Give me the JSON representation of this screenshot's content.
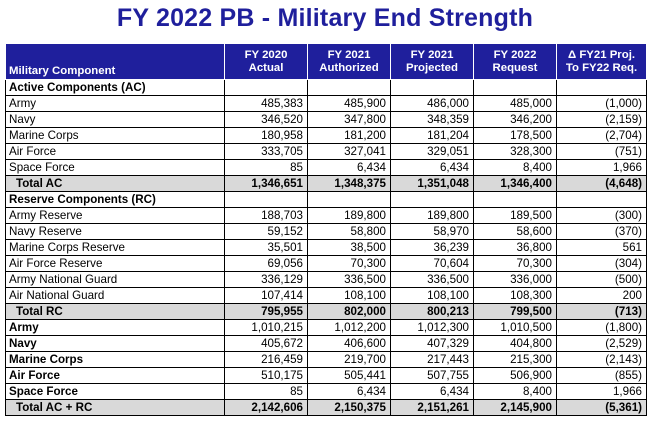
{
  "title": "FY 2022 PB - Military End Strength",
  "header": {
    "component": "Military Component",
    "cols": [
      {
        "l1": "FY 2020",
        "l2": "Actual"
      },
      {
        "l1": "FY 2021",
        "l2": "Authorized"
      },
      {
        "l1": "FY 2021",
        "l2": "Projected"
      },
      {
        "l1": "FY 2022",
        "l2": "Request"
      },
      {
        "l1": "Δ FY21 Proj.",
        "l2": "To FY22 Req."
      }
    ]
  },
  "sections": {
    "ac": "Active Components (AC)",
    "rc": "Reserve Components (RC)"
  },
  "ac_rows": [
    {
      "label": "Army",
      "v": [
        "485,383",
        "485,900",
        "486,000",
        "485,000",
        "(1,000)"
      ]
    },
    {
      "label": "Navy",
      "v": [
        "346,520",
        "347,800",
        "348,359",
        "346,200",
        "(2,159)"
      ]
    },
    {
      "label": "Marine Corps",
      "v": [
        "180,958",
        "181,200",
        "181,204",
        "178,500",
        "(2,704)"
      ]
    },
    {
      "label": "Air Force",
      "v": [
        "333,705",
        "327,041",
        "329,051",
        "328,300",
        "(751)"
      ]
    },
    {
      "label": "Space Force",
      "v": [
        "85",
        "6,434",
        "6,434",
        "8,400",
        "1,966"
      ]
    }
  ],
  "ac_total": {
    "label": "Total AC",
    "v": [
      "1,346,651",
      "1,348,375",
      "1,351,048",
      "1,346,400",
      "(4,648)"
    ]
  },
  "rc_rows": [
    {
      "label": "Army Reserve",
      "v": [
        "188,703",
        "189,800",
        "189,800",
        "189,500",
        "(300)"
      ]
    },
    {
      "label": "Navy Reserve",
      "v": [
        "59,152",
        "58,800",
        "58,970",
        "58,600",
        "(370)"
      ]
    },
    {
      "label": "Marine Corps Reserve",
      "v": [
        "35,501",
        "38,500",
        "36,239",
        "36,800",
        "561"
      ]
    },
    {
      "label": "Air Force Reserve",
      "v": [
        "69,056",
        "70,300",
        "70,604",
        "70,300",
        "(304)"
      ]
    },
    {
      "label": "Army National Guard",
      "v": [
        "336,129",
        "336,500",
        "336,500",
        "336,000",
        "(500)"
      ]
    },
    {
      "label": "Air National Guard",
      "v": [
        "107,414",
        "108,100",
        "108,100",
        "108,300",
        "200"
      ]
    }
  ],
  "rc_total": {
    "label": "Total RC",
    "v": [
      "795,955",
      "802,000",
      "800,213",
      "799,500",
      "(713)"
    ]
  },
  "combined_rows": [
    {
      "label": "Army",
      "v": [
        "1,010,215",
        "1,012,200",
        "1,012,300",
        "1,010,500",
        "(1,800)"
      ]
    },
    {
      "label": "Navy",
      "v": [
        "405,672",
        "406,600",
        "407,329",
        "404,800",
        "(2,529)"
      ]
    },
    {
      "label": "Marine Corps",
      "v": [
        "216,459",
        "219,700",
        "217,443",
        "215,300",
        "(2,143)"
      ]
    },
    {
      "label": "Air Force",
      "v": [
        "510,175",
        "505,441",
        "507,755",
        "506,900",
        "(855)"
      ]
    },
    {
      "label": "Space Force",
      "v": [
        "85",
        "6,434",
        "6,434",
        "8,400",
        "1,966"
      ]
    }
  ],
  "grand_total": {
    "label": "Total AC + RC",
    "v": [
      "2,142,606",
      "2,150,375",
      "2,151,261",
      "2,145,900",
      "(5,361)"
    ]
  }
}
